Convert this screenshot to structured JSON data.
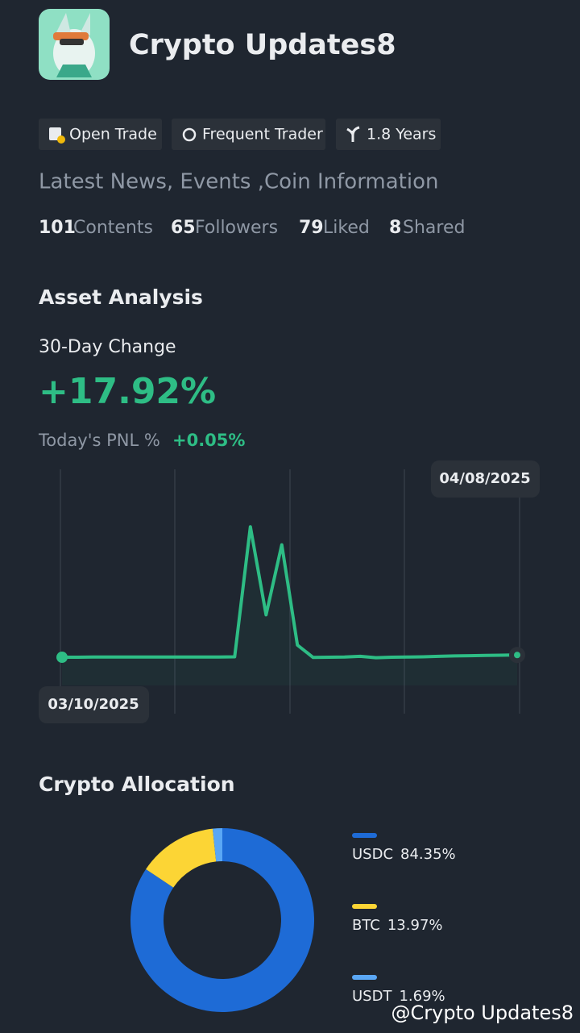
{
  "profile": {
    "name": "Crypto Updates8",
    "badges": [
      "Open Trade",
      "Frequent Trader",
      "1.8 Years"
    ],
    "bio": "Latest News, Events ,Coin Information",
    "stats": [
      {
        "value": 101,
        "label": "Contents"
      },
      {
        "value": 65,
        "label": "Followers"
      },
      {
        "value": 79,
        "label": "Liked"
      },
      {
        "value": 8,
        "label": "Shared"
      }
    ]
  },
  "asset": {
    "title": "Asset Analysis",
    "change_label": "30-Day Change",
    "change_value": "+17.92%",
    "pnl_label": "Today's PNL %",
    "pnl_value": "+0.05%"
  },
  "chart_data": [
    {
      "type": "line",
      "color": "#2ebd85",
      "x": [
        "03/10/2025",
        null,
        null,
        null,
        null,
        null,
        null,
        null,
        null,
        null,
        null,
        null,
        null,
        null,
        null,
        null,
        null,
        null,
        null,
        null,
        null,
        null,
        null,
        null,
        null,
        null,
        null,
        null,
        null,
        "04/08/2025"
      ],
      "values": [
        23.2,
        23.2,
        23.3,
        23.3,
        23.3,
        23.3,
        23.3,
        23.3,
        23.3,
        23.3,
        23.3,
        23.4,
        81,
        42,
        73,
        28.6,
        23.1,
        23.2,
        23.3,
        23.6,
        23.0,
        23.2,
        23.3,
        23.4,
        23.6,
        23.8,
        23.9,
        24.0,
        24.1,
        24.2
      ],
      "ylim": [
        0,
        100
      ]
    },
    {
      "type": "pie",
      "title": "Crypto Allocation",
      "categories": [
        "USDC",
        "BTC",
        "USDT"
      ],
      "values": [
        84.35,
        13.97,
        1.69
      ],
      "value_labels": [
        "84.35%",
        "13.97%",
        "1.69%"
      ],
      "colors": [
        "#1e6bd6",
        "#fcd535",
        "#5aa7f5"
      ]
    }
  ],
  "watermark": "@Crypto Updates8"
}
